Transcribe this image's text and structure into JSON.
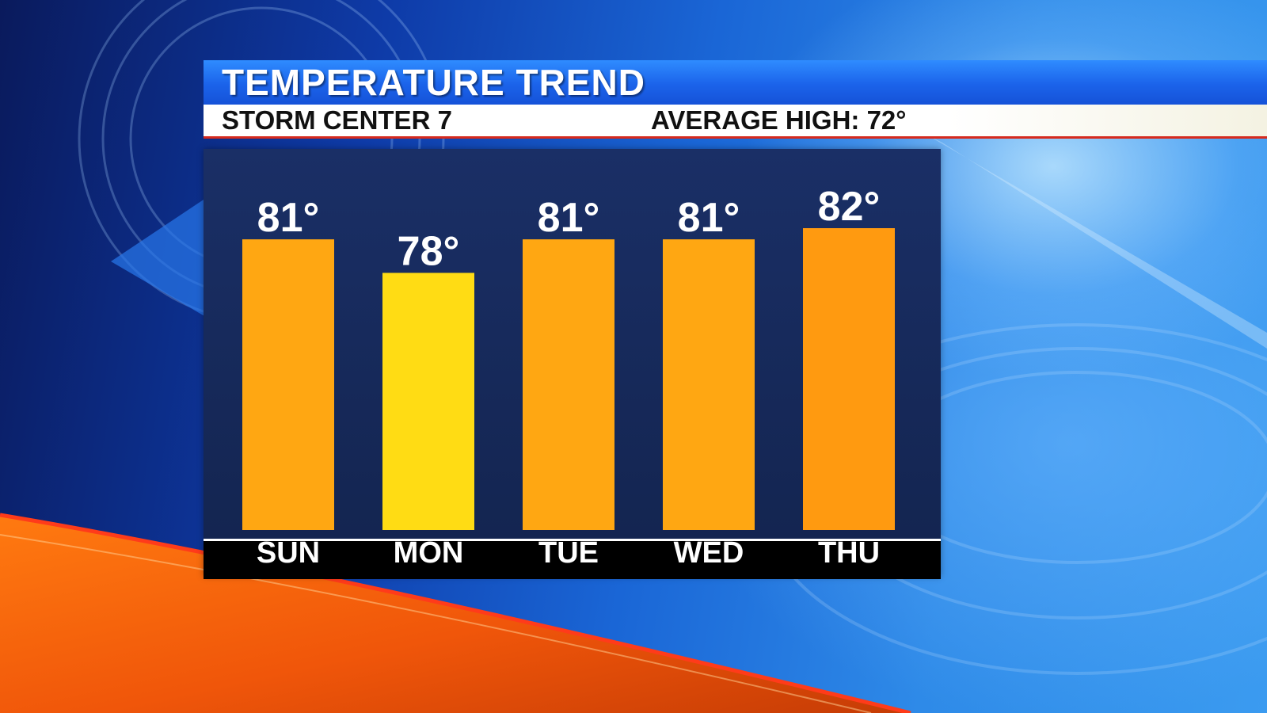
{
  "header": {
    "title": "TEMPERATURE TREND",
    "station": "STORM CENTER 7",
    "average_high": "AVERAGE HIGH: 72°"
  },
  "colors": {
    "bar_default": "#ffa712",
    "bar_low": "#ffdc14",
    "bar_high": "#ff9a10",
    "title_blue": "#1b63ea",
    "accent_red": "#d62a1e"
  },
  "chart_data": {
    "type": "bar",
    "title": "TEMPERATURE TREND",
    "categories": [
      "SUN",
      "MON",
      "TUE",
      "WED",
      "THU"
    ],
    "values": [
      81,
      78,
      81,
      81,
      82
    ],
    "value_labels": [
      "81°",
      "78°",
      "81°",
      "81°",
      "82°"
    ],
    "bar_colors": [
      "#ffa712",
      "#ffdc14",
      "#ffa712",
      "#ffa712",
      "#ff9a10"
    ],
    "ylim": [
      55,
      82
    ],
    "grid": false,
    "legend": "none"
  }
}
